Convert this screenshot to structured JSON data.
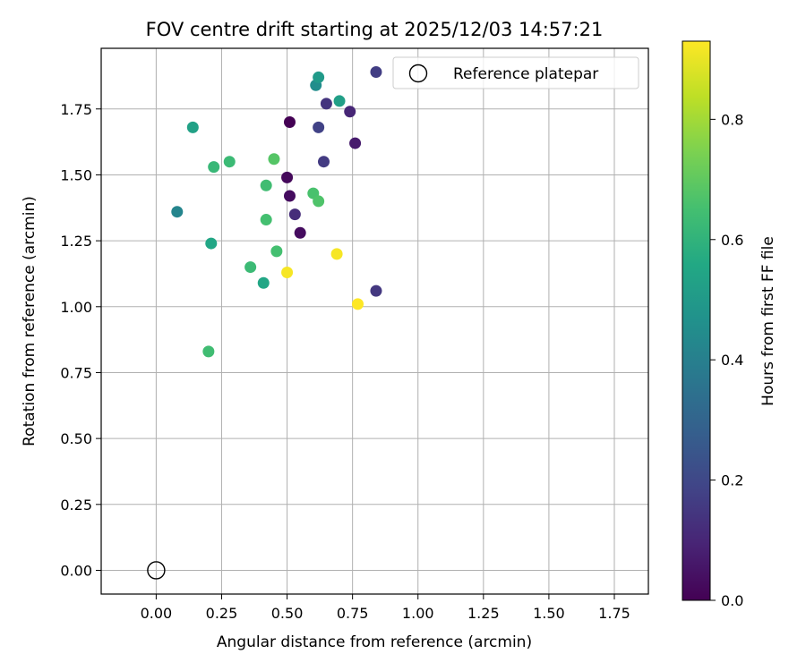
{
  "chart_data": {
    "type": "scatter",
    "title": "FOV centre drift starting at 2025/12/03 14:57:21",
    "xlabel": "Angular distance from reference (arcmin)",
    "ylabel": "Rotation from reference (arcmin)",
    "xlim": [
      -0.21,
      1.88
    ],
    "ylim": [
      -0.09,
      1.98
    ],
    "xticks": [
      "0.00",
      "0.25",
      "0.50",
      "0.75",
      "1.00",
      "1.25",
      "1.50",
      "1.75"
    ],
    "yticks": [
      "0.00",
      "0.25",
      "0.50",
      "0.75",
      "1.00",
      "1.25",
      "1.50",
      "1.75"
    ],
    "grid": true,
    "legend": {
      "location": "top-right",
      "entries": [
        "Reference platepar"
      ]
    },
    "reference_point": {
      "x": 0.0,
      "y": 0.0,
      "label": "Reference platepar"
    },
    "colorbar": {
      "label": "Hours from first FF file",
      "range": [
        0.0,
        0.93
      ],
      "ticks": [
        "0.0",
        "0.2",
        "0.4",
        "0.6",
        "0.8"
      ],
      "colormap": "viridis"
    },
    "points": [
      {
        "x": 0.51,
        "y": 1.7,
        "c": 0.0
      },
      {
        "x": 0.5,
        "y": 1.49,
        "c": 0.02
      },
      {
        "x": 0.51,
        "y": 1.42,
        "c": 0.03
      },
      {
        "x": 0.55,
        "y": 1.28,
        "c": 0.03
      },
      {
        "x": 0.76,
        "y": 1.62,
        "c": 0.07
      },
      {
        "x": 0.74,
        "y": 1.74,
        "c": 0.1
      },
      {
        "x": 0.53,
        "y": 1.35,
        "c": 0.12
      },
      {
        "x": 0.65,
        "y": 1.77,
        "c": 0.14
      },
      {
        "x": 0.84,
        "y": 1.06,
        "c": 0.15
      },
      {
        "x": 0.64,
        "y": 1.55,
        "c": 0.16
      },
      {
        "x": 0.84,
        "y": 1.89,
        "c": 0.17
      },
      {
        "x": 0.62,
        "y": 1.68,
        "c": 0.18
      },
      {
        "x": 0.08,
        "y": 1.36,
        "c": 0.42
      },
      {
        "x": 0.61,
        "y": 1.84,
        "c": 0.45
      },
      {
        "x": 0.62,
        "y": 1.87,
        "c": 0.5
      },
      {
        "x": 0.7,
        "y": 1.78,
        "c": 0.52
      },
      {
        "x": 0.14,
        "y": 1.68,
        "c": 0.53
      },
      {
        "x": 0.21,
        "y": 1.24,
        "c": 0.55
      },
      {
        "x": 0.41,
        "y": 1.09,
        "c": 0.55
      },
      {
        "x": 0.22,
        "y": 1.53,
        "c": 0.62
      },
      {
        "x": 0.28,
        "y": 1.55,
        "c": 0.63
      },
      {
        "x": 0.36,
        "y": 1.15,
        "c": 0.63
      },
      {
        "x": 0.42,
        "y": 1.46,
        "c": 0.64
      },
      {
        "x": 0.2,
        "y": 0.83,
        "c": 0.64
      },
      {
        "x": 0.42,
        "y": 1.33,
        "c": 0.65
      },
      {
        "x": 0.46,
        "y": 1.21,
        "c": 0.65
      },
      {
        "x": 0.6,
        "y": 1.43,
        "c": 0.66
      },
      {
        "x": 0.62,
        "y": 1.4,
        "c": 0.67
      },
      {
        "x": 0.45,
        "y": 1.56,
        "c": 0.68
      },
      {
        "x": 0.5,
        "y": 1.13,
        "c": 0.92
      },
      {
        "x": 0.69,
        "y": 1.2,
        "c": 0.92
      },
      {
        "x": 0.77,
        "y": 1.01,
        "c": 0.93
      }
    ]
  }
}
